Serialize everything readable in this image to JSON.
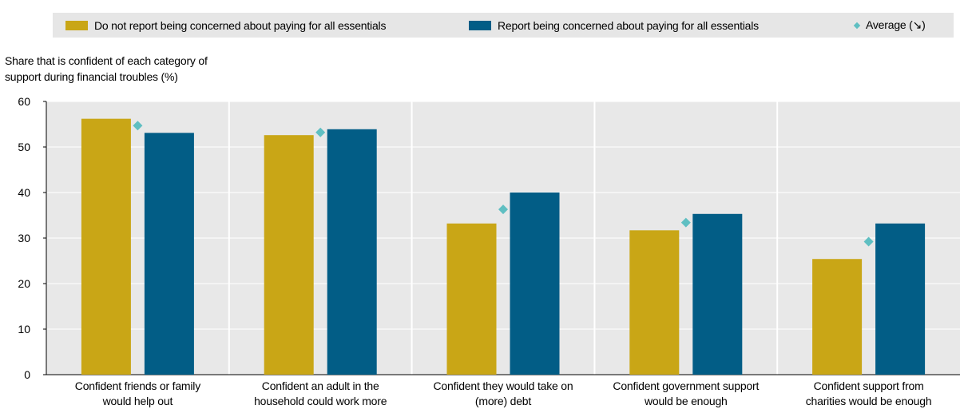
{
  "legend": {
    "items": [
      {
        "label": "Do not report being concerned about paying for all essentials",
        "color": "#c9a616",
        "shape": "square"
      },
      {
        "label": "Report being concerned about paying for all essentials",
        "color": "#025d86",
        "shape": "square"
      },
      {
        "label": "Average (↘)",
        "color": "#5fbfc2",
        "shape": "diamond"
      }
    ]
  },
  "chart_data": {
    "type": "bar",
    "ylabel": "Share that is confident of each category of support during financial troubles (%)",
    "ylabel_lines": [
      "Share that is confident of each category of",
      "support during financial troubles (%)"
    ],
    "ylim": [
      0,
      60
    ],
    "yticks": [
      0,
      10,
      20,
      30,
      40,
      50,
      60
    ],
    "grid": true,
    "legend_position": "top",
    "categories": [
      [
        "Confident friends or family",
        "would help out"
      ],
      [
        "Confident an adult in the",
        "household could work more"
      ],
      [
        "Confident they would take on",
        "(more) debt"
      ],
      [
        "Confident government support",
        "would be enough"
      ],
      [
        "Confident support from",
        "charities would be enough"
      ]
    ],
    "series": [
      {
        "name": "Do not report being concerned about paying for all essentials",
        "color": "#c9a616",
        "values": [
          56.2,
          52.6,
          33.2,
          31.7,
          25.4
        ]
      },
      {
        "name": "Report being concerned about paying for all essentials",
        "color": "#025d86",
        "values": [
          53.1,
          53.9,
          40.0,
          35.3,
          33.2
        ]
      }
    ],
    "average": {
      "name": "Average (↘)",
      "color": "#5fbfc2",
      "values": [
        54.7,
        53.2,
        36.3,
        33.4,
        29.2
      ]
    }
  }
}
